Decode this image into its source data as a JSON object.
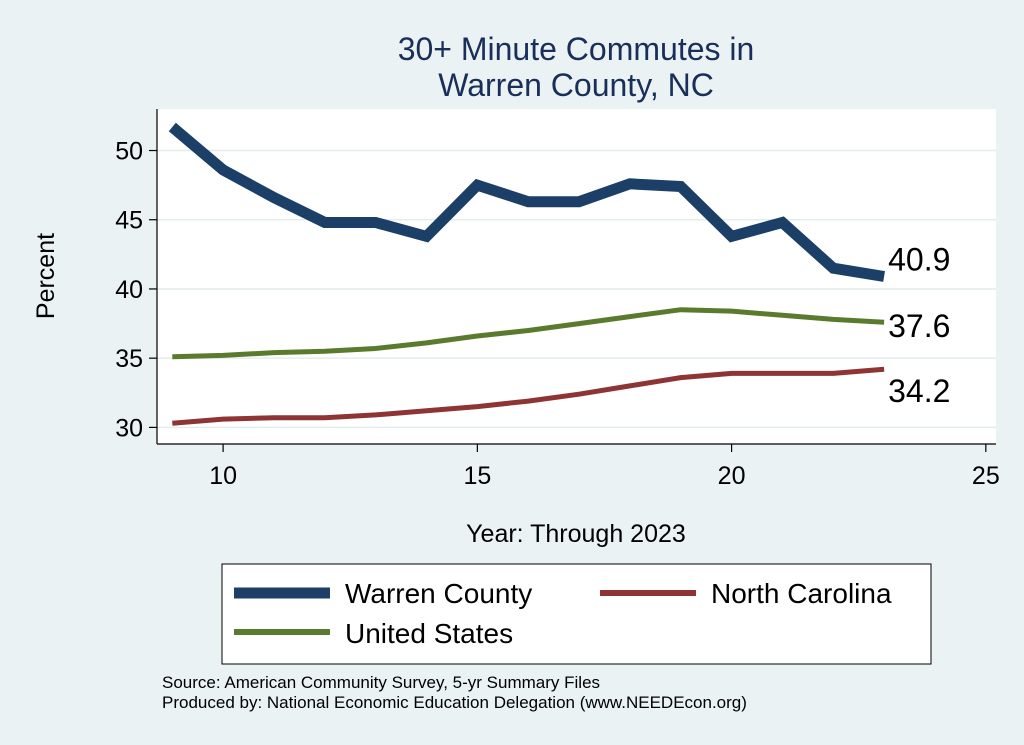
{
  "chart_data": {
    "type": "line",
    "title_line1": "30+ Minute Commutes in",
    "title_line2": "Warren County, NC",
    "xlabel": "Year: Through 2023",
    "ylabel": "Percent",
    "xlim": [
      8.7,
      25.2
    ],
    "ylim": [
      28.8,
      53.0
    ],
    "xticks": [
      10,
      15,
      20,
      25
    ],
    "yticks": [
      30,
      35,
      40,
      45,
      50
    ],
    "x": [
      9,
      10,
      11,
      12,
      13,
      14,
      15,
      16,
      17,
      18,
      19,
      20,
      21,
      22,
      23
    ],
    "series": [
      {
        "name": "Warren County",
        "color": "#1b3f66",
        "values": [
          51.7,
          48.6,
          46.6,
          44.8,
          44.8,
          43.8,
          47.5,
          46.3,
          46.3,
          47.6,
          47.4,
          43.8,
          44.8,
          41.5,
          40.9
        ],
        "end_label": "40.9"
      },
      {
        "name": "United States",
        "color": "#5a7b2e",
        "values": [
          35.1,
          35.2,
          35.4,
          35.5,
          35.7,
          36.1,
          36.6,
          37.0,
          37.5,
          38.0,
          38.5,
          38.4,
          38.1,
          37.8,
          37.6
        ],
        "end_label": "37.6"
      },
      {
        "name": "North Carolina",
        "color": "#8e3434",
        "values": [
          30.3,
          30.6,
          30.7,
          30.7,
          30.9,
          31.2,
          31.5,
          31.9,
          32.4,
          33.0,
          33.6,
          33.9,
          33.9,
          33.9,
          34.2
        ],
        "end_label": "34.2"
      }
    ],
    "legend": [
      {
        "label": "Warren County"
      },
      {
        "label": "North Carolina"
      },
      {
        "label": "United States"
      }
    ]
  },
  "footer": {
    "source": "Source: American Community Survey, 5-yr Summary Files",
    "produced": "Produced by: National Economic Education Delegation (www.NEEDEcon.org)"
  }
}
